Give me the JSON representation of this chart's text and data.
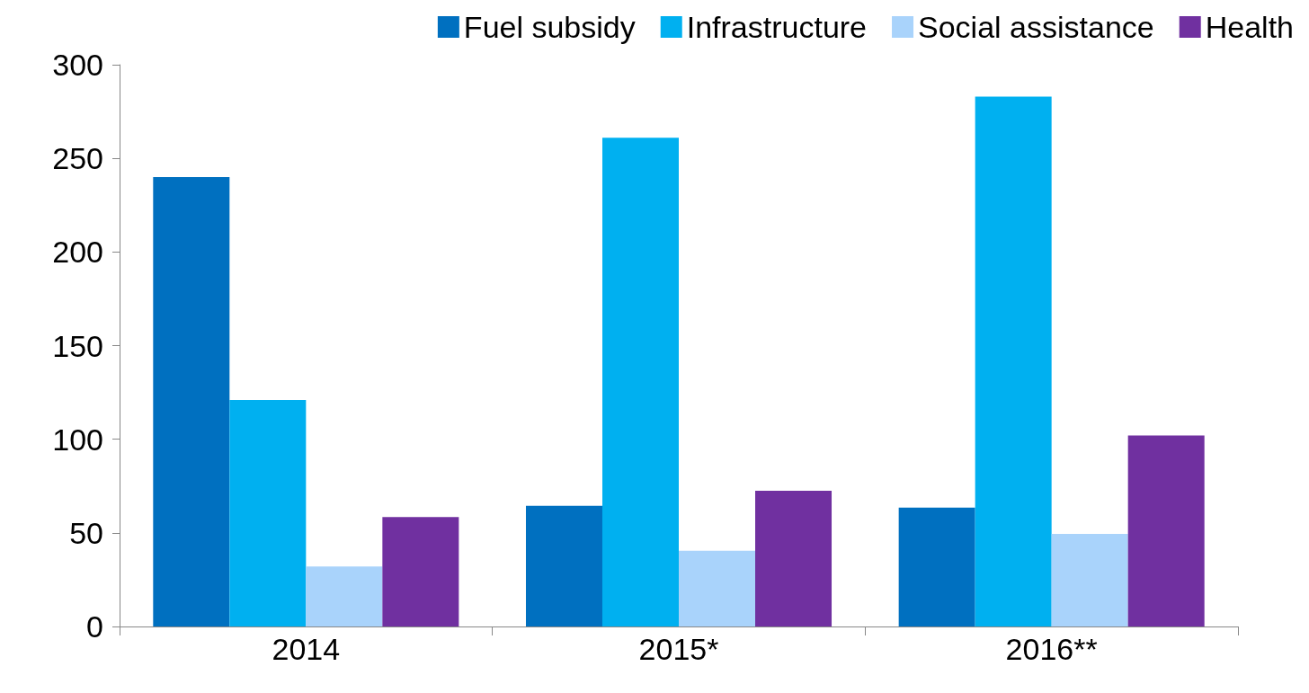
{
  "chart_data": {
    "type": "bar",
    "categories": [
      "2014",
      "2015*",
      "2016**"
    ],
    "series": [
      {
        "name": "Fuel subsidy",
        "color": "#0070c0",
        "values": [
          240,
          64.5,
          63.5
        ]
      },
      {
        "name": "Infrastructure",
        "color": "#00b0f0",
        "values": [
          121,
          261,
          283
        ]
      },
      {
        "name": "Social assistance",
        "color": "#a9d3fb",
        "values": [
          32,
          40.5,
          49.5
        ]
      },
      {
        "name": "Health",
        "color": "#7030a0",
        "values": [
          58.5,
          72.5,
          102
        ]
      }
    ],
    "ylim": [
      0,
      300
    ],
    "yticks": [
      0,
      50,
      100,
      150,
      200,
      250,
      300
    ],
    "grid": false,
    "legend": "top right"
  }
}
